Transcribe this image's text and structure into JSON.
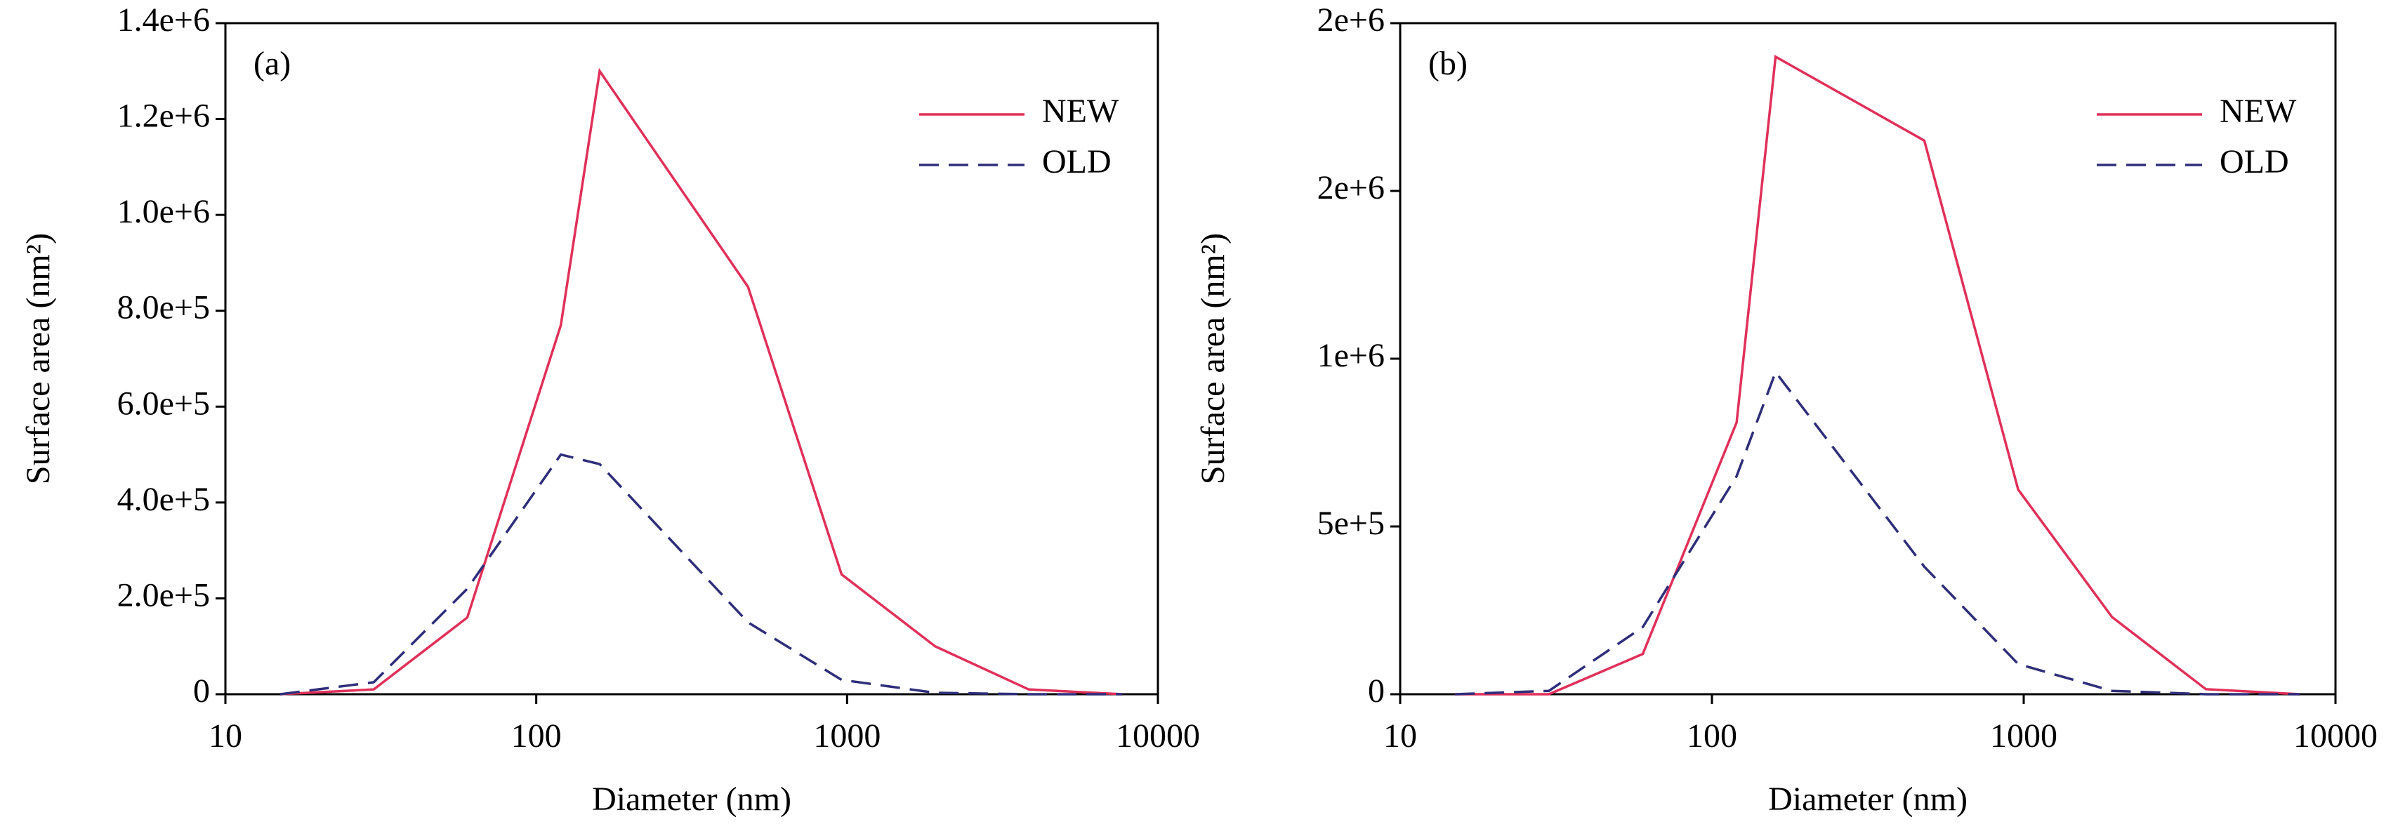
{
  "chart_data": [
    {
      "type": "line",
      "annotation": "(a)",
      "xlabel": "Diameter (nm)",
      "ylabel": "Surface area (nm²)",
      "log_x": true,
      "legend": "upper right",
      "grid": false,
      "x": [
        15,
        30,
        60,
        120,
        160,
        480,
        960,
        1920,
        3840,
        7680
      ],
      "series": [
        {
          "name": "NEW",
          "color": "#e0305a",
          "dash": false,
          "values": [
            0,
            10000,
            160000,
            770000,
            1300000,
            850000,
            250000,
            100000,
            10000,
            0
          ]
        },
        {
          "name": "OLD",
          "color": "#2e2e7a",
          "dash": true,
          "values": [
            0,
            25000,
            220000,
            500000,
            480000,
            150000,
            30000,
            3000,
            0,
            0
          ]
        }
      ],
      "xlim": [
        10,
        10000
      ],
      "xticks": [
        10,
        100,
        1000,
        10000
      ],
      "ylim": [
        0,
        1400000
      ],
      "yticks": [
        0,
        {
          "value": 200000,
          "label": "2.0e+5"
        },
        {
          "value": 400000,
          "label": "4.0e+5"
        },
        {
          "value": 600000,
          "label": "6.0e+5"
        },
        {
          "value": 800000,
          "label": "8.0e+5"
        },
        {
          "value": 1000000,
          "label": "1.0e+6"
        },
        {
          "value": 1200000,
          "label": "1.2e+6"
        },
        {
          "value": 1400000,
          "label": "1.4e+6"
        }
      ]
    },
    {
      "type": "line",
      "annotation": "(b)",
      "xlabel": "Diameter (nm)",
      "ylabel": "Surface area (nm²)",
      "log_x": true,
      "legend": "upper right",
      "grid": false,
      "x": [
        15,
        30,
        60,
        120,
        160,
        480,
        960,
        1920,
        3840,
        7680
      ],
      "series": [
        {
          "name": "NEW",
          "color": "#e0305a",
          "dash": false,
          "values": [
            0,
            0,
            120000,
            810000,
            1900000,
            1650000,
            610000,
            230000,
            15000,
            0
          ]
        },
        {
          "name": "OLD",
          "color": "#2e2e7a",
          "dash": true,
          "values": [
            0,
            10000,
            200000,
            650000,
            960000,
            380000,
            90000,
            10000,
            0,
            0
          ]
        }
      ],
      "xlim": [
        10,
        10000
      ],
      "xticks": [
        10,
        100,
        1000,
        10000
      ],
      "ylim": [
        0,
        2000000
      ],
      "yticks": [
        0,
        {
          "value": 500000,
          "label": "5e+5"
        },
        {
          "value": 1000000,
          "label": "1e+6"
        },
        {
          "value": 1500000,
          "label": "2e+6"
        },
        {
          "value": 2000000,
          "label": "2e+6"
        }
      ]
    }
  ]
}
